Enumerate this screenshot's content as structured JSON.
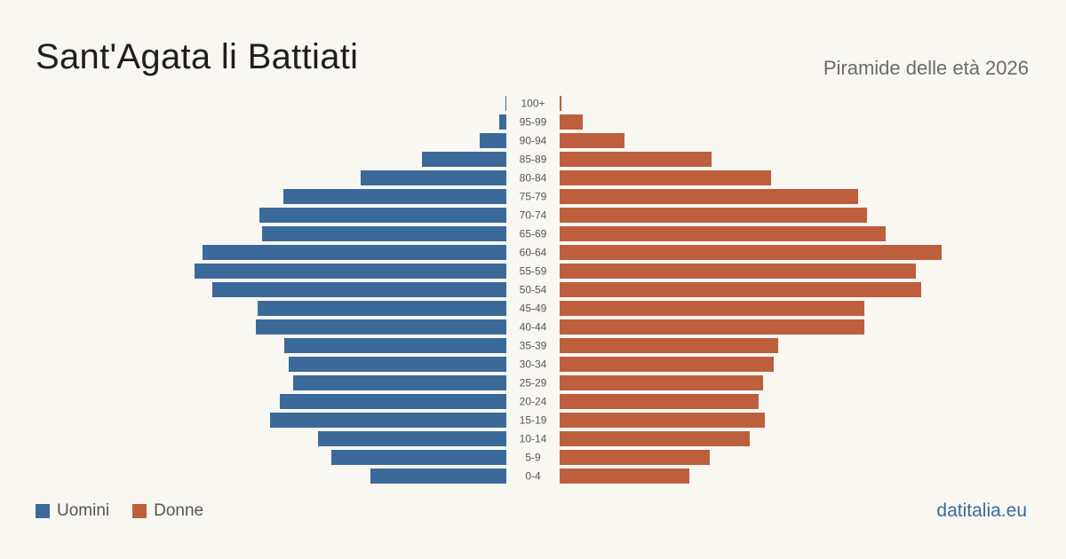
{
  "header": {
    "title": "Sant'Agata li Battiati",
    "subtitle": "Piramide delle età 2026"
  },
  "legend": {
    "men_label": "Uomini",
    "women_label": "Donne"
  },
  "footer": {
    "source": "datitalia.eu"
  },
  "colors": {
    "men": "#3b6a9a",
    "women": "#bd5f3d",
    "background": "#f9f7f2",
    "age_label": "#555555"
  },
  "chart_data": {
    "type": "bar",
    "orientation": "horizontal-pyramid",
    "categories": [
      "100+",
      "95-99",
      "90-94",
      "85-89",
      "80-84",
      "75-79",
      "70-74",
      "65-69",
      "60-64",
      "55-59",
      "50-54",
      "45-49",
      "40-44",
      "35-39",
      "30-34",
      "25-29",
      "20-24",
      "15-19",
      "10-14",
      "5-9",
      "0-4"
    ],
    "series": [
      {
        "name": "Uomini",
        "values": [
          1,
          8,
          30,
          95,
          164,
          251,
          278,
          275,
          342,
          351,
          331,
          280,
          282,
          250,
          245,
          240,
          255,
          266,
          212,
          197,
          153
        ]
      },
      {
        "name": "Donne",
        "values": [
          2,
          26,
          73,
          171,
          238,
          336,
          346,
          367,
          430,
          401,
          407,
          343,
          343,
          246,
          241,
          229,
          224,
          231,
          214,
          169,
          146
        ]
      }
    ]
  }
}
